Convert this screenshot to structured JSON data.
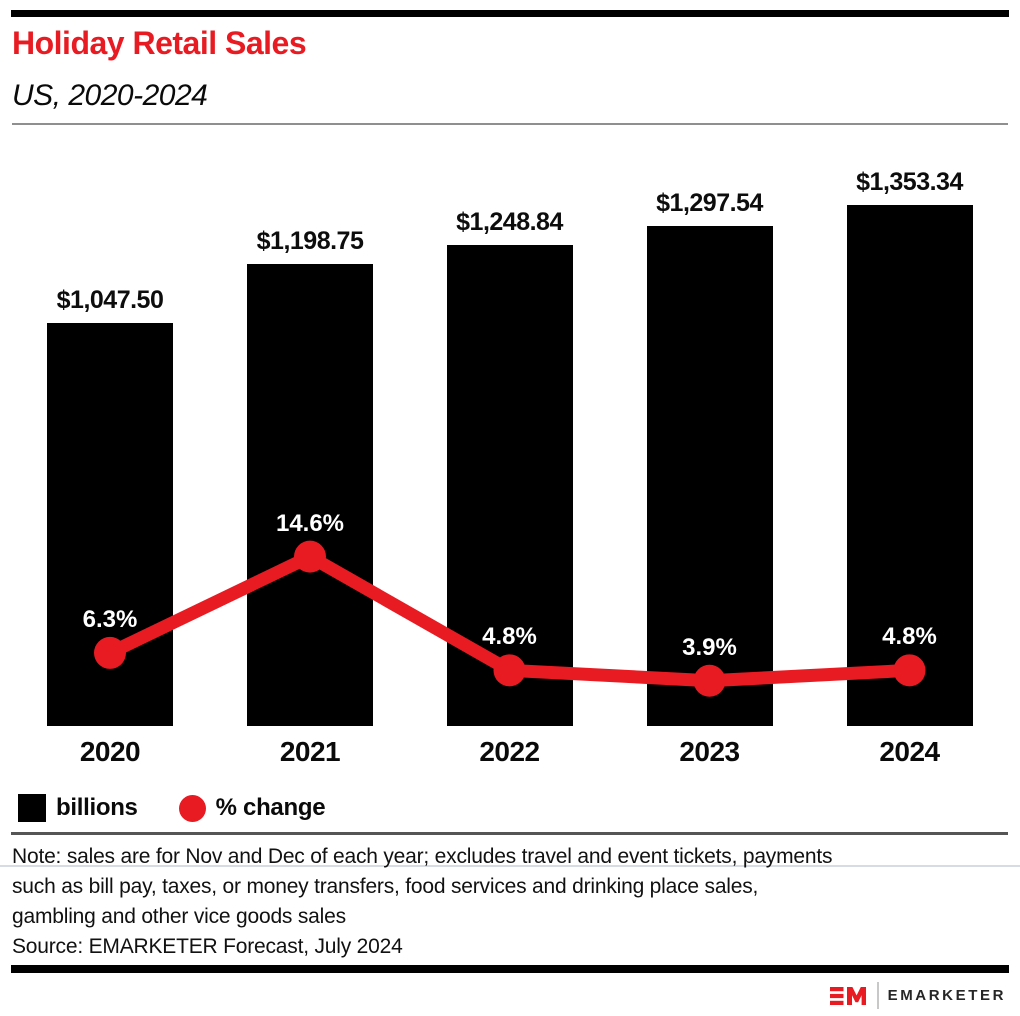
{
  "header": {
    "title": "Holiday Retail Sales",
    "subtitle": "US, 2020-2024"
  },
  "chart_data": {
    "type": "bar",
    "subtype": "bar-with-line-overlay",
    "categories": [
      "2020",
      "2021",
      "2022",
      "2023",
      "2024"
    ],
    "series": [
      {
        "name": "billions",
        "type": "bar",
        "color": "#000000",
        "values": [
          1047.5,
          1198.75,
          1248.84,
          1297.54,
          1353.34
        ],
        "labels": [
          "$1,047.50",
          "$1,198.75",
          "$1,248.84",
          "$1,297.54",
          "$1,353.34"
        ]
      },
      {
        "name": "% change",
        "type": "line",
        "color": "#e81b22",
        "values": [
          6.3,
          14.6,
          4.8,
          3.9,
          4.8
        ],
        "labels": [
          "6.3%",
          "14.6%",
          "4.8%",
          "3.9%",
          "4.8%"
        ]
      }
    ],
    "legend": [
      {
        "label": "billions",
        "swatch": "black-square"
      },
      {
        "label": "% change",
        "swatch": "red-circle"
      }
    ],
    "ylim_bar": [
      0,
      1400
    ],
    "grid": false,
    "legend_position": "bottom-left"
  },
  "note": {
    "lines": [
      "Note: sales are for Nov and Dec of each year; excludes travel and event tickets, payments",
      "such as bill pay, taxes, or money transfers, food services and drinking place sales,",
      "gambling and other vice goods sales"
    ],
    "source": "Source: EMARKETER Forecast, July 2024"
  },
  "footer": {
    "brand": "EMARKETER"
  },
  "colors": {
    "accent_red": "#e81b22",
    "bar_black": "#000000",
    "baseline_gray": "#d7dbe4",
    "header_rule_gray": "#8f8f8f",
    "legend_rule_gray": "#555555"
  }
}
